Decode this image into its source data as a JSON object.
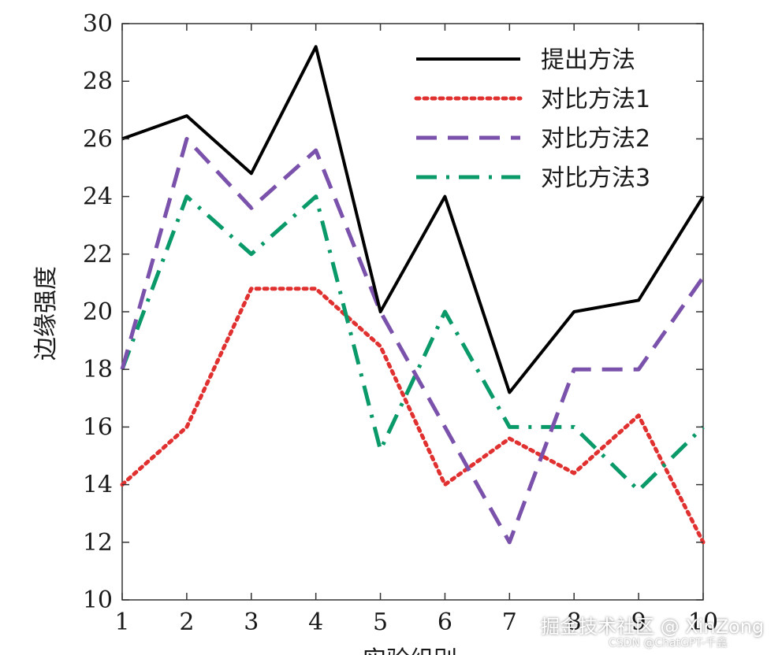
{
  "chart_data": {
    "type": "line",
    "x": [
      1,
      2,
      3,
      4,
      5,
      6,
      7,
      8,
      9,
      10
    ],
    "xlim": [
      1,
      10
    ],
    "ylim": [
      10,
      30
    ],
    "xticks": [
      "1",
      "2",
      "3",
      "4",
      "5",
      "6",
      "7",
      "8",
      "9",
      "10"
    ],
    "yticks": [
      "10",
      "12",
      "14",
      "16",
      "18",
      "20",
      "22",
      "24",
      "26",
      "28",
      "30"
    ],
    "ylabel": "边缘强度",
    "xlabel": "实验组别",
    "grid": false,
    "legend_position": "top-right",
    "series": [
      {
        "name": "提出方法",
        "color": "#000000",
        "style": "solid",
        "values": [
          26,
          26.8,
          24.8,
          29.2,
          20,
          24,
          17.2,
          20,
          20.4,
          24
        ]
      },
      {
        "name": "对比方法1",
        "color": "#e03030",
        "style": "dotted",
        "values": [
          14,
          16,
          20.8,
          20.8,
          18.8,
          14,
          15.6,
          14.4,
          16.4,
          12
        ]
      },
      {
        "name": "对比方法2",
        "color": "#7b52ab",
        "style": "dashed",
        "values": [
          18,
          26,
          23.6,
          25.6,
          20,
          16,
          12,
          18,
          18,
          21.2
        ]
      },
      {
        "name": "对比方法3",
        "color": "#0a9a6a",
        "style": "dashdot",
        "values": [
          18,
          24,
          22,
          24,
          15.2,
          20,
          16,
          16,
          13.8,
          16
        ]
      }
    ]
  },
  "watermark": {
    "main": "掘金技术社区 @ XinZong",
    "sub": "CSDN @ChatGPT-千鑫"
  }
}
